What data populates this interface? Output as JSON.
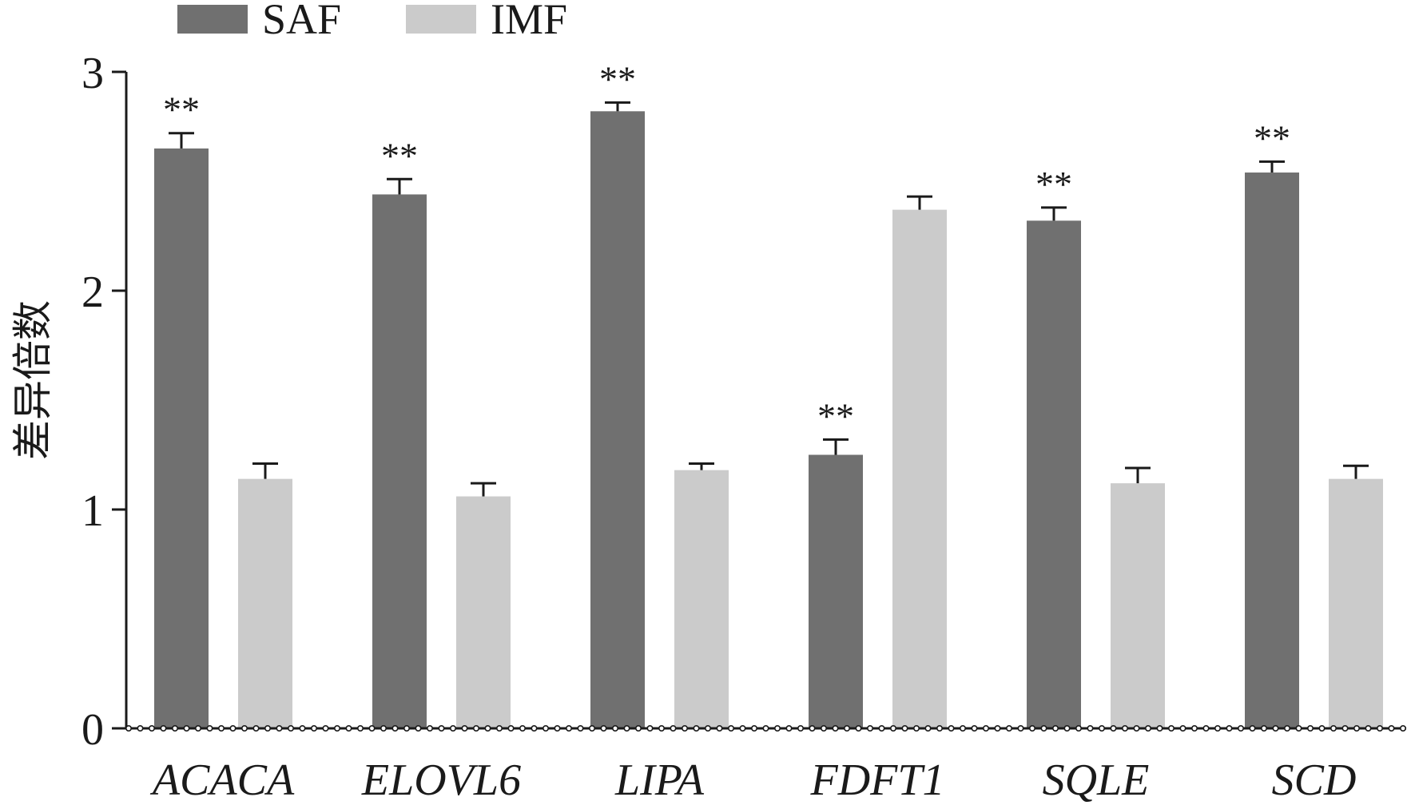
{
  "chart_data": {
    "type": "bar",
    "ylabel": "差异倍数",
    "ylim": [
      0,
      3
    ],
    "yticks": [
      0,
      1,
      2,
      3
    ],
    "categories": [
      "ACACA",
      "ELOVL6",
      "LIPA",
      "FDFT1",
      "SQLE",
      "SCD"
    ],
    "legend_position": "top-left",
    "series": [
      {
        "name": "SAF",
        "color": "#707070",
        "values": [
          2.65,
          2.44,
          2.82,
          1.25,
          2.32,
          2.54
        ],
        "errors": [
          0.07,
          0.07,
          0.04,
          0.07,
          0.06,
          0.05
        ],
        "annotations": [
          "**",
          "**",
          "**",
          "**",
          "**",
          "**"
        ]
      },
      {
        "name": "IMF",
        "color": "#cbcbcb",
        "values": [
          1.14,
          1.06,
          1.18,
          2.37,
          1.12,
          1.14
        ],
        "errors": [
          0.07,
          0.06,
          0.03,
          0.06,
          0.07,
          0.06
        ],
        "annotations": [
          "",
          "",
          "",
          "",
          "",
          ""
        ]
      }
    ]
  }
}
